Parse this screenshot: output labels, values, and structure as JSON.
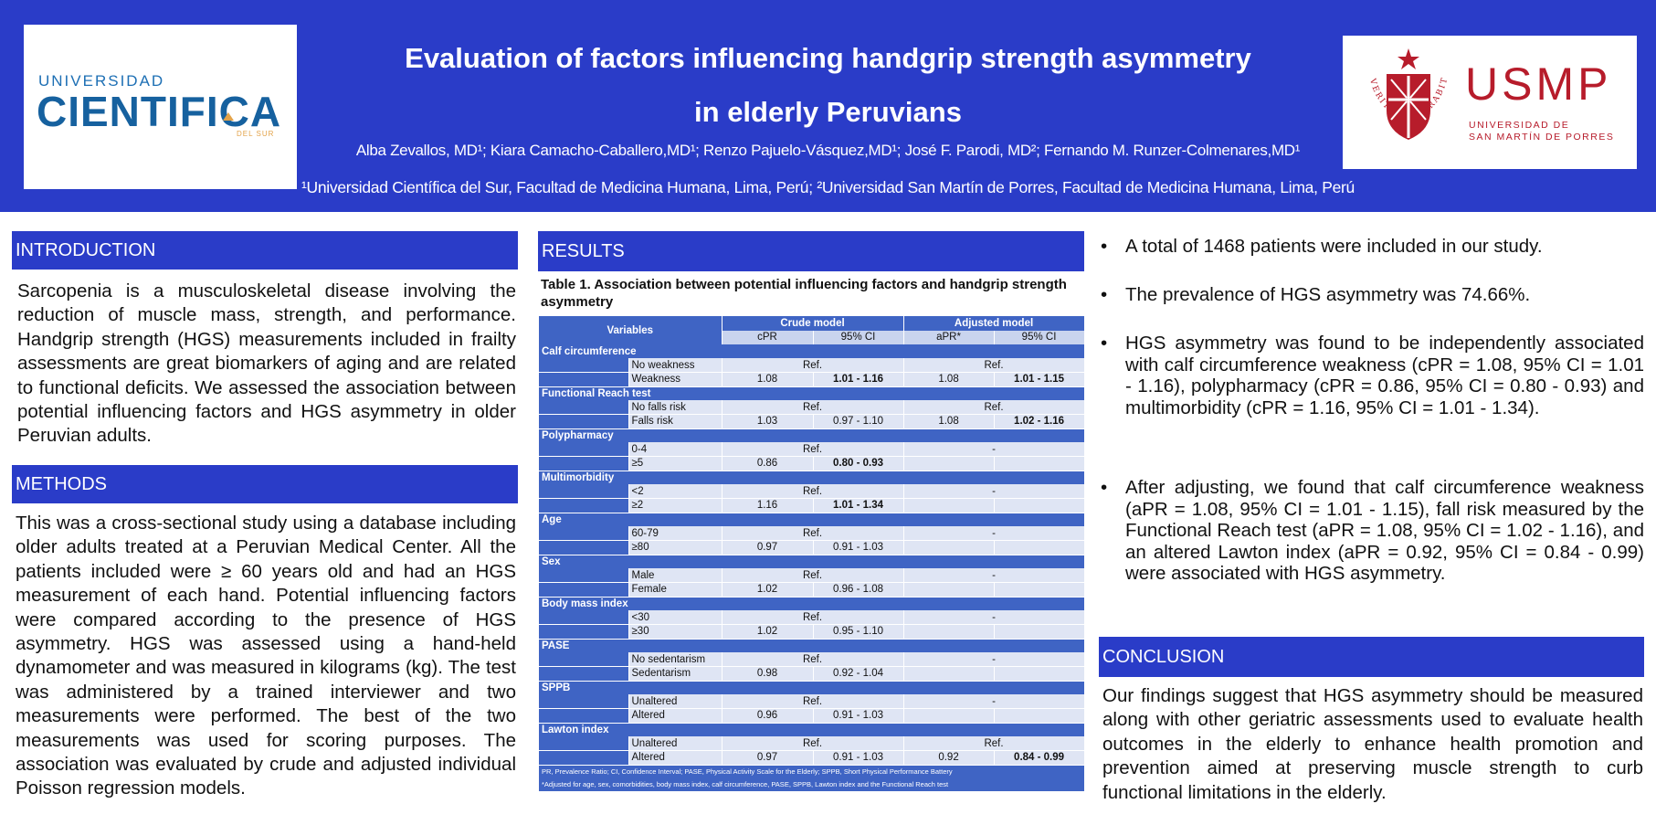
{
  "header": {
    "title_line1": "Evaluation of factors influencing handgrip strength asymmetry",
    "title_line2": "in elderly Peruvians",
    "authors": "Alba Zevallos, MD¹; Kiara Camacho-Caballero,MD¹; Renzo Pajuelo-Vásquez,MD¹; José F. Parodi, MD²; Fernando M. Runzer-Colmenares,MD¹",
    "affiliations": "¹Universidad Científica del Sur, Facultad de Medicina Humana, Lima, Perú; ²Universidad San Martín de Porres, Facultad de Medicina Humana, Lima, Perú",
    "logo_left": {
      "top": "UNIVERSIDAD",
      "main": "CIENTIFICA",
      "sub": "DEL SUR"
    },
    "logo_right": {
      "name": "USMP",
      "sub_line1": "UNIVERSIDAD DE",
      "sub_line2": "SAN MARTÍN DE PORRES",
      "seal_text": "VERITAS LIBERABIT VOS"
    }
  },
  "introduction": {
    "heading": "INTRODUCTION",
    "text": "Sarcopenia is a musculoskeletal disease involving the reduction of muscle mass, strength, and performance. Handgrip strength (HGS) measurements included in frailty assessments are great biomarkers of aging and are related to functional deficits. We assessed the association between potential influencing factors and HGS asymmetry in older Peruvian adults."
  },
  "methods": {
    "heading": "METHODS",
    "text": "This was a cross-sectional study using a database including older adults treated at a Peruvian Medical Center. All the patients included were ≥ 60 years old and had an HGS measurement of each hand. Potential influencing factors were compared according to the presence of HGS asymmetry. HGS was assessed using a hand-held dynamometer and was measured in kilograms (kg). The test was administered by a trained interviewer and two measurements were performed. The best of the two measurements was used for scoring purposes. The association was evaluated by crude and adjusted individual Poisson regression models."
  },
  "results": {
    "heading": "RESULTS",
    "table_caption": "Table 1. Association between potential influencing factors and handgrip strength asymmetry",
    "col_variables": "Variables",
    "col_crude": "Crude model",
    "col_adjusted": "Adjusted model",
    "col_cpr": "cPR",
    "col_ci": "95% CI",
    "col_apr": "aPR*",
    "col_ci2": "95% CI",
    "groups": [
      {
        "name": "Calf circumference",
        "rows": [
          {
            "label": "No weakness",
            "crude_ref": "Ref.",
            "adj_ref": "Ref."
          },
          {
            "label": "Weakness",
            "cpr": "1.08",
            "ci": "1.01 - 1.16",
            "ci_bold": true,
            "apr": "1.08",
            "ci2": "1.01 - 1.15",
            "ci2_bold": true
          }
        ]
      },
      {
        "name": "Functional Reach test",
        "rows": [
          {
            "label": "No falls risk",
            "crude_ref": "Ref.",
            "adj_ref": "Ref."
          },
          {
            "label": "Falls risk",
            "cpr": "1.03",
            "ci": "0.97 - 1.10",
            "apr": "1.08",
            "ci2": "1.02 - 1.16",
            "ci2_bold": true
          }
        ]
      },
      {
        "name": "Polypharmacy",
        "rows": [
          {
            "label": "0-4",
            "crude_ref": "Ref.",
            "adj_ref": "-"
          },
          {
            "label": "≥5",
            "cpr": "0.86",
            "ci": "0.80 - 0.93",
            "ci_bold": true
          }
        ]
      },
      {
        "name": "Multimorbidity",
        "rows": [
          {
            "label": "<2",
            "crude_ref": "Ref.",
            "adj_ref": "-"
          },
          {
            "label": "≥2",
            "cpr": "1.16",
            "ci": "1.01 - 1.34",
            "ci_bold": true
          }
        ]
      },
      {
        "name": "Age",
        "rows": [
          {
            "label": "60-79",
            "crude_ref": "Ref.",
            "adj_ref": "-"
          },
          {
            "label": "≥80",
            "cpr": "0.97",
            "ci": "0.91 - 1.03"
          }
        ]
      },
      {
        "name": "Sex",
        "rows": [
          {
            "label": "Male",
            "crude_ref": "Ref.",
            "adj_ref": "-"
          },
          {
            "label": "Female",
            "cpr": "1.02",
            "ci": "0.96 - 1.08"
          }
        ]
      },
      {
        "name": "Body mass index",
        "rows": [
          {
            "label": "<30",
            "crude_ref": "Ref.",
            "adj_ref": "-"
          },
          {
            "label": "≥30",
            "cpr": "1.02",
            "ci": "0.95 - 1.10"
          }
        ]
      },
      {
        "name": "PASE",
        "rows": [
          {
            "label": "No sedentarism",
            "crude_ref": "Ref.",
            "adj_ref": "-"
          },
          {
            "label": "Sedentarism",
            "cpr": "0.98",
            "ci": "0.92 - 1.04"
          }
        ]
      },
      {
        "name": "SPPB",
        "rows": [
          {
            "label": "Unaltered",
            "crude_ref": "Ref.",
            "adj_ref": "-"
          },
          {
            "label": "Altered",
            "cpr": "0.96",
            "ci": "0.91 - 1.03"
          }
        ]
      },
      {
        "name": "Lawton index",
        "rows": [
          {
            "label": "Unaltered",
            "crude_ref": "Ref.",
            "adj_ref": "Ref."
          },
          {
            "label": "Altered",
            "cpr": "0.97",
            "ci": "0.91 - 1.03",
            "apr": "0.92",
            "ci2": "0.84 - 0.99",
            "ci2_bold": true
          }
        ]
      }
    ],
    "note1": "PR, Prevalence Ratio; CI, Confidence Interval; PASE, Physical Activity Scale for the Elderly; SPPB, Short Physical Performance Battery",
    "note2": "*Adjusted for age, sex, comorbidities, body mass index, calf circumference, PASE, SPPB, Lawton index and the Functional Reach test"
  },
  "findings": {
    "bullet_char": "•",
    "items": [
      "A total of 1468 patients were included in our study.",
      "The prevalence of HGS asymmetry was 74.66%.",
      "HGS asymmetry was found to be independently associated with calf circumference weakness (cPR = 1.08, 95% CI = 1.01 - 1.16), polypharmacy (cPR = 0.86, 95% CI = 0.80 - 0.93) and multimorbidity (cPR = 1.16, 95% CI = 1.01 - 1.34).",
      "After adjusting, we found that calf circumference weakness (aPR = 1.08, 95% CI = 1.01 - 1.15), fall risk measured by the Functional Reach test (aPR = 1.08, 95% CI = 1.02 - 1.16), and an altered Lawton index (aPR = 0.92, 95% CI = 0.84 - 0.99) were associated with HGS asymmetry."
    ]
  },
  "conclusion": {
    "heading": "CONCLUSION",
    "text": "Our findings suggest that HGS asymmetry should be measured along with other geriatric assessments used to evaluate health outcomes in the elderly to enhance health promotion and prevention aimed at preserving muscle strength to curb functional limitations in the elderly."
  }
}
